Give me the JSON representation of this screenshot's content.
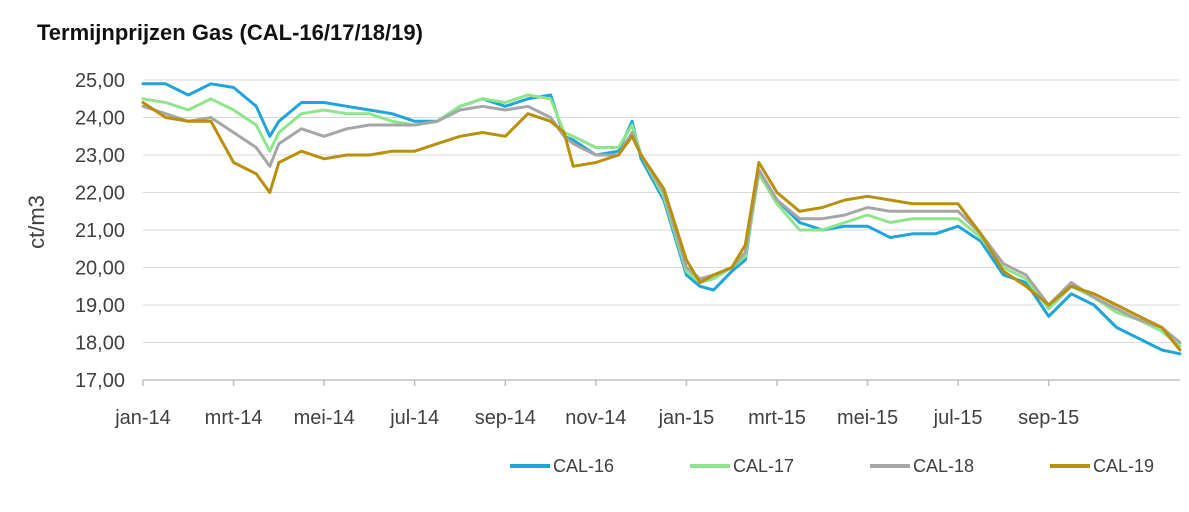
{
  "chart_data": {
    "type": "line",
    "title": "Termijnprijzen Gas (CAL-16/17/18/19)",
    "ylabel": "ct/m3",
    "xlabel": "",
    "ylim": [
      17,
      25
    ],
    "yticks": [
      "17,00",
      "18,00",
      "19,00",
      "20,00",
      "21,00",
      "22,00",
      "23,00",
      "24,00",
      "25,00"
    ],
    "x_tick_labels": [
      "jan-14",
      "mrt-14",
      "mei-14",
      "jul-14",
      "sep-14",
      "nov-14",
      "jan-15",
      "mrt-15",
      "mei-15",
      "jul-15",
      "sep-15"
    ],
    "x_tick_months": [
      0,
      2,
      4,
      6,
      8,
      10,
      12,
      14,
      16,
      18,
      20
    ],
    "x_range_months": [
      0,
      22.9
    ],
    "grid": "horizontal",
    "legend_position": "bottom",
    "series": [
      {
        "name": "CAL-16",
        "color": "#1fa5dc",
        "x": [
          0,
          0.5,
          1,
          1.5,
          2,
          2.5,
          2.8,
          3,
          3.5,
          4,
          4.5,
          5,
          5.5,
          6,
          6.5,
          7,
          7.5,
          8,
          8.5,
          9,
          9.3,
          9.5,
          10,
          10.5,
          10.8,
          11,
          11.5,
          12,
          12.3,
          12.6,
          13,
          13.3,
          13.6,
          14,
          14.5,
          15,
          15.5,
          16,
          16.5,
          17,
          17.5,
          18,
          18.5,
          19,
          19.5,
          20,
          20.5,
          21,
          21.5,
          22,
          22.5,
          22.9
        ],
        "y": [
          24.9,
          24.9,
          24.6,
          24.9,
          24.8,
          24.3,
          23.5,
          23.9,
          24.4,
          24.4,
          24.3,
          24.2,
          24.1,
          23.9,
          23.9,
          24.3,
          24.5,
          24.3,
          24.5,
          24.6,
          23.5,
          23.4,
          23.0,
          23.1,
          23.9,
          22.9,
          21.8,
          19.8,
          19.5,
          19.4,
          19.9,
          20.2,
          22.6,
          21.8,
          21.2,
          21.0,
          21.1,
          21.1,
          20.8,
          20.9,
          20.9,
          21.1,
          20.7,
          19.8,
          19.6,
          18.7,
          19.3,
          19.0,
          18.4,
          18.1,
          17.8,
          17.7
        ]
      },
      {
        "name": "CAL-17",
        "color": "#8ee58a",
        "x": [
          0,
          0.5,
          1,
          1.5,
          2,
          2.5,
          2.8,
          3,
          3.5,
          4,
          4.5,
          5,
          5.5,
          6,
          6.5,
          7,
          7.5,
          8,
          8.5,
          9,
          9.3,
          9.5,
          10,
          10.5,
          10.8,
          11,
          11.5,
          12,
          12.3,
          12.6,
          13,
          13.3,
          13.6,
          14,
          14.5,
          15,
          15.5,
          16,
          16.5,
          17,
          17.5,
          18,
          18.5,
          19,
          19.5,
          20,
          20.5,
          21,
          21.5,
          22,
          22.5,
          22.9
        ],
        "y": [
          24.5,
          24.4,
          24.2,
          24.5,
          24.2,
          23.8,
          23.1,
          23.6,
          24.1,
          24.2,
          24.1,
          24.1,
          23.9,
          23.8,
          23.9,
          24.3,
          24.5,
          24.4,
          24.6,
          24.5,
          23.6,
          23.5,
          23.2,
          23.2,
          23.8,
          23.0,
          21.9,
          19.9,
          19.6,
          19.7,
          20.0,
          20.3,
          22.5,
          21.7,
          21.0,
          21.0,
          21.2,
          21.4,
          21.2,
          21.3,
          21.3,
          21.3,
          20.8,
          20.0,
          19.7,
          18.9,
          19.5,
          19.2,
          18.8,
          18.6,
          18.3,
          17.9
        ]
      },
      {
        "name": "CAL-18",
        "color": "#a6a6a6",
        "x": [
          0,
          0.5,
          1,
          1.5,
          2,
          2.5,
          2.8,
          3,
          3.5,
          4,
          4.5,
          5,
          5.5,
          6,
          6.5,
          7,
          7.5,
          8,
          8.5,
          9,
          9.3,
          9.5,
          10,
          10.5,
          10.8,
          11,
          11.5,
          12,
          12.3,
          12.6,
          13,
          13.3,
          13.6,
          14,
          14.5,
          15,
          15.5,
          16,
          16.5,
          17,
          17.5,
          18,
          18.5,
          19,
          19.5,
          20,
          20.5,
          21,
          21.5,
          22,
          22.5,
          22.9
        ],
        "y": [
          24.3,
          24.1,
          23.9,
          24.0,
          23.6,
          23.2,
          22.7,
          23.3,
          23.7,
          23.5,
          23.7,
          23.8,
          23.8,
          23.8,
          23.9,
          24.2,
          24.3,
          24.2,
          24.3,
          24.0,
          23.5,
          23.3,
          23.0,
          23.0,
          23.6,
          23.0,
          22.0,
          20.0,
          19.7,
          19.8,
          20.0,
          20.4,
          22.6,
          21.8,
          21.3,
          21.3,
          21.4,
          21.6,
          21.5,
          21.5,
          21.5,
          21.5,
          20.9,
          20.1,
          19.8,
          19.0,
          19.6,
          19.2,
          18.9,
          18.6,
          18.4,
          18.0
        ]
      },
      {
        "name": "CAL-19",
        "color": "#b8900c",
        "x": [
          0,
          0.5,
          1,
          1.5,
          2,
          2.5,
          2.8,
          3,
          3.5,
          4,
          4.5,
          5,
          5.5,
          6,
          6.5,
          7,
          7.5,
          8,
          8.5,
          9,
          9.3,
          9.5,
          10,
          10.5,
          10.8,
          11,
          11.5,
          12,
          12.3,
          12.6,
          13,
          13.3,
          13.6,
          14,
          14.5,
          15,
          15.5,
          16,
          16.5,
          17,
          17.5,
          18,
          18.5,
          19,
          19.5,
          20,
          20.5,
          21,
          21.5,
          22,
          22.5,
          22.9
        ],
        "y": [
          24.4,
          24.0,
          23.9,
          23.9,
          22.8,
          22.5,
          22.0,
          22.8,
          23.1,
          22.9,
          23.0,
          23.0,
          23.1,
          23.1,
          23.3,
          23.5,
          23.6,
          23.5,
          24.1,
          23.9,
          23.6,
          22.7,
          22.8,
          23.0,
          23.5,
          23.0,
          22.1,
          20.2,
          19.6,
          19.8,
          20.0,
          20.6,
          22.8,
          22.0,
          21.5,
          21.6,
          21.8,
          21.9,
          21.8,
          21.7,
          21.7,
          21.7,
          20.9,
          19.9,
          19.5,
          19.0,
          19.5,
          19.3,
          19.0,
          18.7,
          18.4,
          17.8
        ]
      }
    ]
  }
}
